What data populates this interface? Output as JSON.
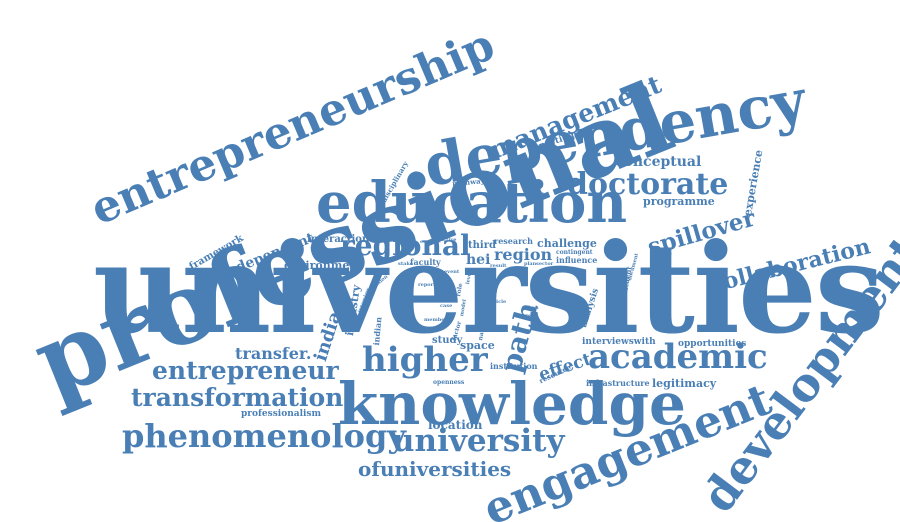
{
  "palette": {
    "word": "#4a7fb5",
    "background": "#ffffff"
  },
  "words": {
    "universities": "universities",
    "professional": "professional",
    "entrepreneurship": "entrepreneurship",
    "dependency": "dependency",
    "education": "education",
    "knowledge": "knowledge",
    "engagement": "engagement",
    "development": "development",
    "management": "management",
    "doctorate": "doctorate",
    "regional": "regional",
    "higher": "higher",
    "academic": "academic",
    "university": "university",
    "phenomenology": "phenomenology",
    "transformation": "transformation",
    "entrepreneur": "entrepreneur",
    "ofuniversities": "ofuniversities",
    "collaboration": "collaboration",
    "spillover": "spillover",
    "path": "path",
    "region": "region",
    "india": "india",
    "transfer": "transfer.",
    "conceptual": "conceptual",
    "programme": "programme",
    "experience": "experience",
    "dependent": "dependent",
    "framework": "framework",
    "environment": "environment",
    "interaction": "interaction",
    "industry": "industry",
    "challenge": "challenge",
    "participant": "participant",
    "effect": "effect",
    "interviewswith": "interviewswith",
    "opportunities": "opportunities",
    "legitimacy": "legitimacy",
    "infrastructure": "infrastructure",
    "location": "location",
    "professionalism": "professionalism",
    "space": "space",
    "study": "study",
    "institution": "institution",
    "analysis": "analysis",
    "third": "third",
    "hei": "hei",
    "research": "research",
    "influence": "influence",
    "disciplinary": "disciplinary",
    "pathway": "pathway",
    "faculty": "faculty",
    "indian": "indian",
    "openness": "openness",
    "resource": "resource",
    "constituent": "constituent",
    "contingent": "contingent",
    "current": "current",
    "document": "document",
    "factor": "factor",
    "national": "national",
    "member": "member",
    "event": "event",
    "tension": "tension",
    "stake": "stake",
    "reactive": "reactive",
    "explore": "explore",
    "report": "report",
    "official": "official",
    "interview": "interview",
    "article": "article",
    "urban": "urban",
    "result": "result",
    "plan": "plan",
    "sector": "sector",
    "role": "role",
    "level": "level",
    "model": "model",
    "case": "case"
  }
}
